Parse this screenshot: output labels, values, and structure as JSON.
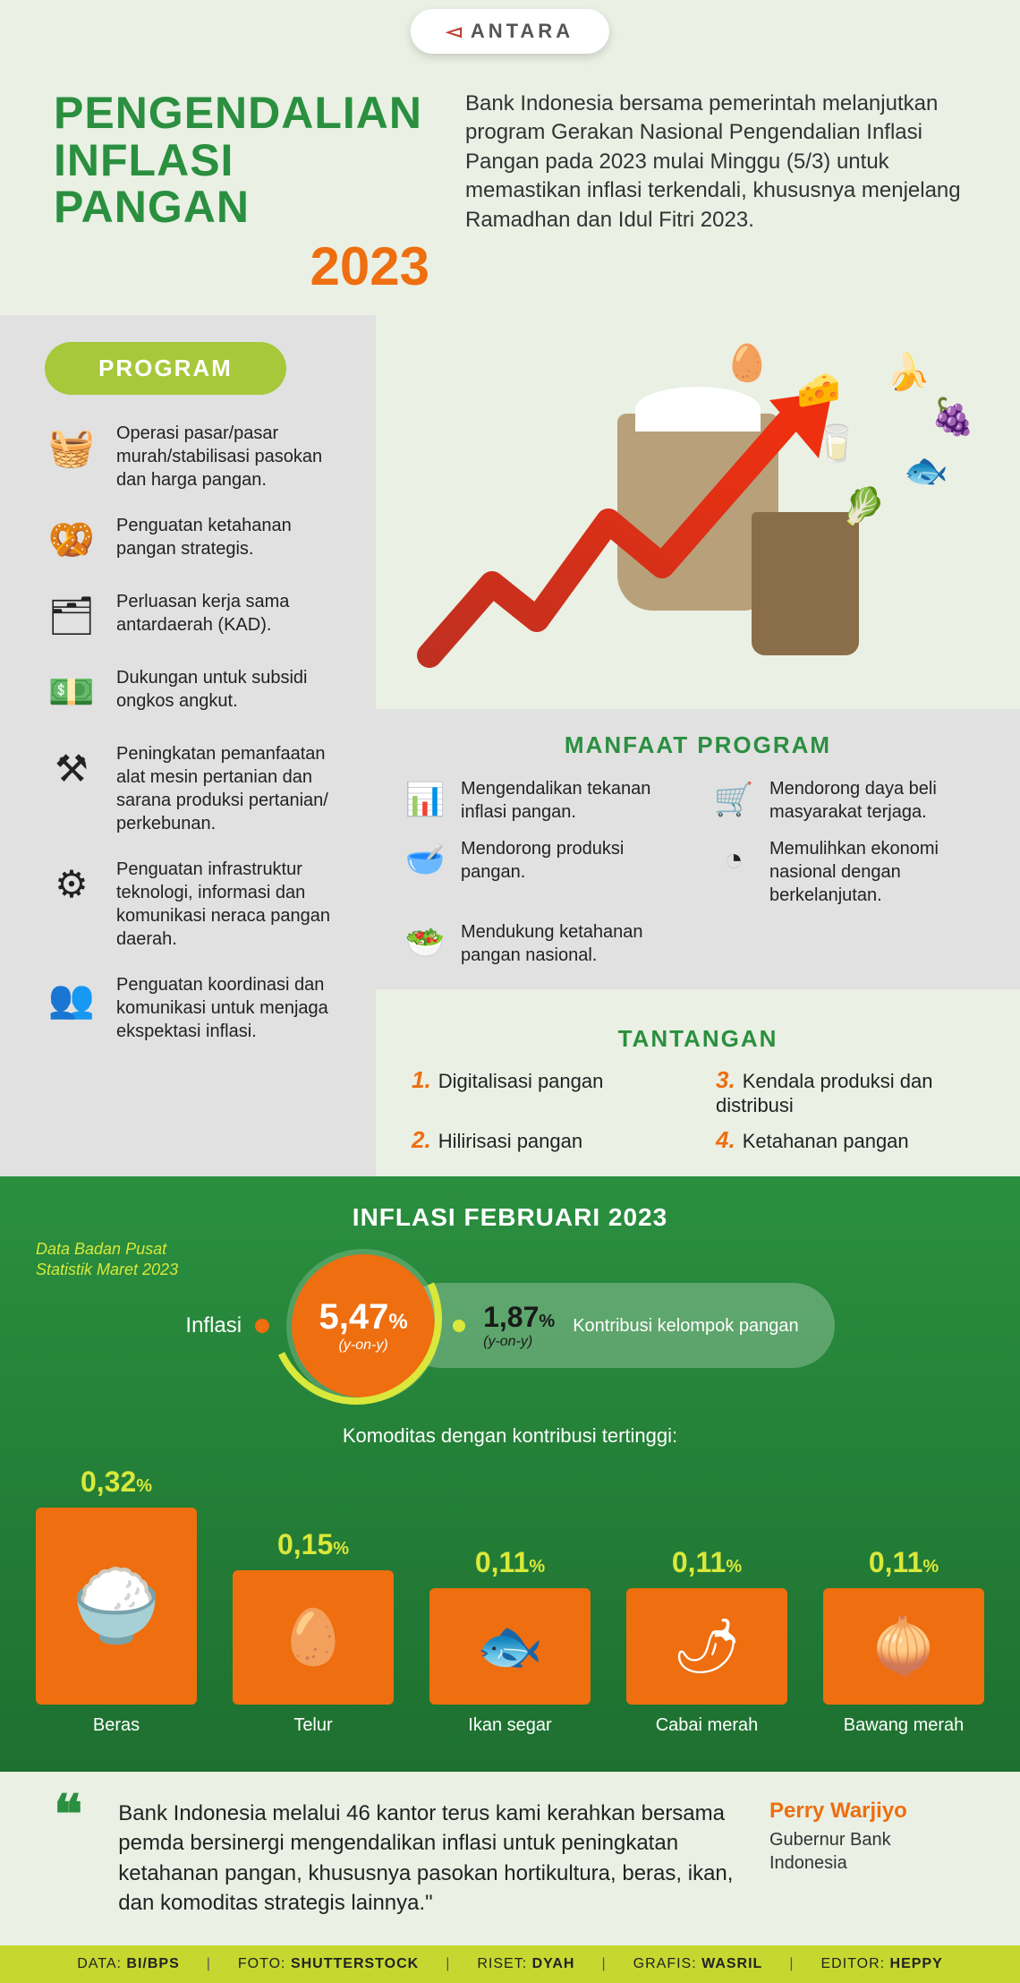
{
  "logo": "ANTARA",
  "title_line1": "PENGENDALIAN",
  "title_line2": "INFLASI PANGAN",
  "title_year": "2023",
  "intro": "Bank Indonesia bersama pemerintah melanjutkan program Gerakan Nasional Pengendalian Inflasi Pangan pada 2023 mulai Minggu (5/3) untuk memastikan inflasi terkendali, khususnya menjelang Ramadhan dan Idul Fitri 2023.",
  "colors": {
    "bg": "#eaf0e4",
    "gray_panel": "#e1e1e1",
    "green_title": "#2a8f3f",
    "orange": "#ee6e10",
    "lime": "#a6c83a",
    "dark_green": "#1e7030",
    "yellow": "#d9e83a",
    "footer_bg": "#c6d830",
    "text": "#222222"
  },
  "program": {
    "heading": "PROGRAM",
    "items": [
      {
        "icon": "🧺",
        "text": "Operasi pasar/pasar murah/stabilisasi pasokan dan harga pangan."
      },
      {
        "icon": "🥨",
        "text": "Penguatan ketahanan pangan strategis."
      },
      {
        "icon": "🗂",
        "text": "Perluasan kerja sama antardaerah (KAD)."
      },
      {
        "icon": "💵",
        "text": "Dukungan untuk subsidi ongkos angkut."
      },
      {
        "icon": "⚒",
        "text": "Peningkatan pemanfaatan alat mesin pertanian dan sarana produksi pertanian/ perkebunan."
      },
      {
        "icon": "⚙",
        "text": "Penguatan infrastruktur teknologi, informasi dan komunikasi neraca pangan daerah."
      },
      {
        "icon": "👥",
        "text": "Penguatan koordinasi dan komunikasi untuk menjaga ekspektasi inflasi."
      }
    ]
  },
  "manfaat": {
    "heading": "MANFAAT PROGRAM",
    "items": [
      {
        "icon": "📊",
        "text": "Mengendalikan tekanan inflasi pangan."
      },
      {
        "icon": "🛒",
        "text": "Mendorong daya beli masyarakat terjaga."
      },
      {
        "icon": "🥣",
        "text": "Mendorong produksi pangan."
      },
      {
        "icon": "◔",
        "text": "Memulihkan ekonomi nasional dengan berkelanjutan."
      },
      {
        "icon": "🥗",
        "text": "Mendukung ketahanan pangan nasional."
      }
    ]
  },
  "tantangan": {
    "heading": "TANTANGAN",
    "items": [
      {
        "num": "1.",
        "text": "Digitalisasi pangan"
      },
      {
        "num": "3.",
        "text": "Kendala produksi dan distribusi"
      },
      {
        "num": "2.",
        "text": "Hilirisasi pangan"
      },
      {
        "num": "4.",
        "text": "Ketahanan pangan"
      }
    ]
  },
  "greenSection": {
    "heading": "INFLASI FEBRUARI 2023",
    "source": "Data Badan Pusat Statistik Maret 2023",
    "inflasi_label": "Inflasi",
    "inflasi_value": "5,47",
    "inflasi_unit": "%",
    "inflasi_sub": "(y-on-y)",
    "kontribusi_value": "1,87",
    "kontribusi_unit": "%",
    "kontribusi_sub": "(y-on-y)",
    "kontribusi_label": "Kontribusi kelompok pangan",
    "commodities_title": "Komoditas dengan kontribusi tertinggi:",
    "commodities": [
      {
        "pct": "0,32",
        "name": "Beras",
        "emoji": "🍚"
      },
      {
        "pct": "0,15",
        "name": "Telur",
        "emoji": "🥚"
      },
      {
        "pct": "0,11",
        "name": "Ikan segar",
        "emoji": "🐟"
      },
      {
        "pct": "0,11",
        "name": "Cabai merah",
        "emoji": "🌶"
      },
      {
        "pct": "0,11",
        "name": "Bawang merah",
        "emoji": "🧅"
      }
    ]
  },
  "quote": {
    "text": "Bank Indonesia melalui 46 kantor terus kami kerahkan bersama pemda bersinergi mengendalikan inflasi untuk peningkatan ketahanan pangan, khususnya pasokan hortikultura, beras, ikan, dan komoditas strategis lainnya.\"",
    "author": "Perry Warjiyo",
    "role": "Gubernur Bank Indonesia"
  },
  "footer": {
    "credits": [
      {
        "label": "DATA:",
        "value": "BI/BPS"
      },
      {
        "label": "FOTO:",
        "value": "SHUTTERSTOCK"
      },
      {
        "label": "RISET:",
        "value": "DYAH"
      },
      {
        "label": "GRAFIS:",
        "value": "WASRIL"
      },
      {
        "label": "EDITOR:",
        "value": "HEPPY"
      }
    ]
  }
}
